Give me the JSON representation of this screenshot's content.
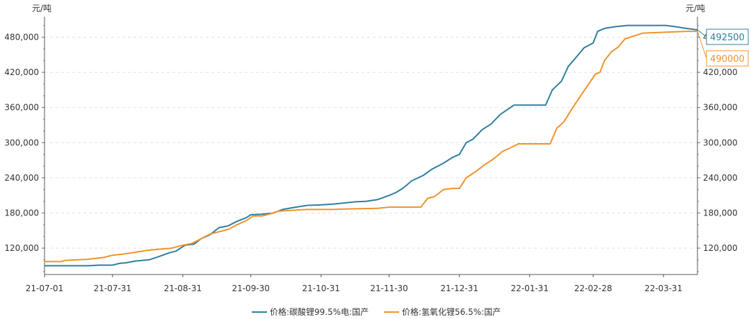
{
  "chart_data": {
    "type": "line",
    "unit_left": "元/吨",
    "unit_right": "元/吨",
    "x_ticks": [
      "21-07-01",
      "21-07-31",
      "21-08-31",
      "21-09-30",
      "21-10-31",
      "21-11-30",
      "21-12-31",
      "22-01-31",
      "22-02-28",
      "22-03-31"
    ],
    "y_ticks": [
      "120,000",
      "180,000",
      "240,000",
      "300,000",
      "360,000",
      "420,000",
      "480,000"
    ],
    "ylim": [
      75000,
      515000
    ],
    "xlim": [
      "2021-07-01",
      "2022-04-15"
    ],
    "grid": true,
    "legend_position": "bottom",
    "series": [
      {
        "name": "价格:碳酸锂99.5%电:国产",
        "color": "#2E7EA0",
        "end_label": "492500",
        "points": [
          [
            "2021-07-01",
            90000
          ],
          [
            "2021-07-20",
            90000
          ],
          [
            "2021-07-25",
            91000
          ],
          [
            "2021-07-31",
            91000
          ],
          [
            "2021-08-03",
            94000
          ],
          [
            "2021-08-06",
            95000
          ],
          [
            "2021-08-10",
            98000
          ],
          [
            "2021-08-16",
            100000
          ],
          [
            "2021-08-20",
            105000
          ],
          [
            "2021-08-25",
            112000
          ],
          [
            "2021-08-28",
            115000
          ],
          [
            "2021-09-01",
            125000
          ],
          [
            "2021-09-05",
            127000
          ],
          [
            "2021-09-08",
            136000
          ],
          [
            "2021-09-12",
            143000
          ],
          [
            "2021-09-16",
            155000
          ],
          [
            "2021-09-20",
            158000
          ],
          [
            "2021-09-24",
            166000
          ],
          [
            "2021-09-28",
            172000
          ],
          [
            "2021-09-30",
            177000
          ],
          [
            "2021-10-05",
            178000
          ],
          [
            "2021-10-10",
            180000
          ],
          [
            "2021-10-14",
            186000
          ],
          [
            "2021-10-20",
            190000
          ],
          [
            "2021-10-25",
            193000
          ],
          [
            "2021-10-31",
            194000
          ],
          [
            "2021-11-05",
            195000
          ],
          [
            "2021-11-10",
            197000
          ],
          [
            "2021-11-15",
            199000
          ],
          [
            "2021-11-20",
            200000
          ],
          [
            "2021-11-25",
            203000
          ],
          [
            "2021-11-30",
            210000
          ],
          [
            "2021-12-03",
            215000
          ],
          [
            "2021-12-06",
            222000
          ],
          [
            "2021-12-10",
            235000
          ],
          [
            "2021-12-15",
            244000
          ],
          [
            "2021-12-19",
            255000
          ],
          [
            "2021-12-24",
            265000
          ],
          [
            "2021-12-28",
            275000
          ],
          [
            "2021-12-31",
            280000
          ],
          [
            "2022-01-03",
            300000
          ],
          [
            "2022-01-06",
            306000
          ],
          [
            "2022-01-10",
            322000
          ],
          [
            "2022-01-14",
            332000
          ],
          [
            "2022-01-18",
            348000
          ],
          [
            "2022-01-21",
            356000
          ],
          [
            "2022-01-24",
            364000
          ],
          [
            "2022-01-31",
            364000
          ],
          [
            "2022-02-07",
            364000
          ],
          [
            "2022-02-10",
            390000
          ],
          [
            "2022-02-14",
            405000
          ],
          [
            "2022-02-17",
            430000
          ],
          [
            "2022-02-21",
            448000
          ],
          [
            "2022-02-24",
            462000
          ],
          [
            "2022-02-28",
            470000
          ],
          [
            "2022-03-02",
            490000
          ],
          [
            "2022-03-05",
            495000
          ],
          [
            "2022-03-10",
            498000
          ],
          [
            "2022-03-15",
            500000
          ],
          [
            "2022-04-01",
            500000
          ],
          [
            "2022-04-05",
            498000
          ],
          [
            "2022-04-10",
            495000
          ],
          [
            "2022-04-15",
            492500
          ]
        ]
      },
      {
        "name": "价格:氢氧化锂56.5%:国产",
        "color": "#F0922B",
        "end_label": "490000",
        "points": [
          [
            "2021-07-01",
            97000
          ],
          [
            "2021-07-08",
            97000
          ],
          [
            "2021-07-10",
            99000
          ],
          [
            "2021-07-15",
            100000
          ],
          [
            "2021-07-20",
            101000
          ],
          [
            "2021-07-27",
            104000
          ],
          [
            "2021-07-31",
            108000
          ],
          [
            "2021-08-05",
            110000
          ],
          [
            "2021-08-10",
            113000
          ],
          [
            "2021-08-15",
            116000
          ],
          [
            "2021-08-20",
            118000
          ],
          [
            "2021-08-26",
            120000
          ],
          [
            "2021-08-31",
            125000
          ],
          [
            "2021-09-04",
            128000
          ],
          [
            "2021-09-08",
            136000
          ],
          [
            "2021-09-12",
            144000
          ],
          [
            "2021-09-16",
            148000
          ],
          [
            "2021-09-20",
            152000
          ],
          [
            "2021-09-24",
            160000
          ],
          [
            "2021-09-28",
            167000
          ],
          [
            "2021-10-01",
            175000
          ],
          [
            "2021-10-05",
            175000
          ],
          [
            "2021-10-08",
            178000
          ],
          [
            "2021-10-12",
            183000
          ],
          [
            "2021-10-20",
            185000
          ],
          [
            "2021-10-25",
            186000
          ],
          [
            "2021-11-05",
            186000
          ],
          [
            "2021-11-12",
            187000
          ],
          [
            "2021-11-25",
            188000
          ],
          [
            "2021-11-30",
            190000
          ],
          [
            "2021-12-10",
            190000
          ],
          [
            "2021-12-14",
            190000
          ],
          [
            "2021-12-17",
            205000
          ],
          [
            "2021-12-20",
            208000
          ],
          [
            "2021-12-24",
            220000
          ],
          [
            "2021-12-28",
            222000
          ],
          [
            "2021-12-31",
            222000
          ],
          [
            "2022-01-03",
            240000
          ],
          [
            "2022-01-07",
            250000
          ],
          [
            "2022-01-11",
            262000
          ],
          [
            "2022-01-15",
            272000
          ],
          [
            "2022-01-19",
            285000
          ],
          [
            "2022-01-23",
            292000
          ],
          [
            "2022-01-26",
            298000
          ],
          [
            "2022-02-09",
            298000
          ],
          [
            "2022-02-12",
            325000
          ],
          [
            "2022-02-15",
            335000
          ],
          [
            "2022-02-19",
            360000
          ],
          [
            "2022-02-23",
            383000
          ],
          [
            "2022-02-26",
            400000
          ],
          [
            "2022-03-01",
            417000
          ],
          [
            "2022-03-03",
            420000
          ],
          [
            "2022-03-05",
            440000
          ],
          [
            "2022-03-08",
            455000
          ],
          [
            "2022-03-11",
            463000
          ],
          [
            "2022-03-14",
            477000
          ],
          [
            "2022-03-18",
            482000
          ],
          [
            "2022-03-22",
            487000
          ],
          [
            "2022-04-10",
            490000
          ],
          [
            "2022-04-15",
            490000
          ]
        ]
      }
    ]
  }
}
